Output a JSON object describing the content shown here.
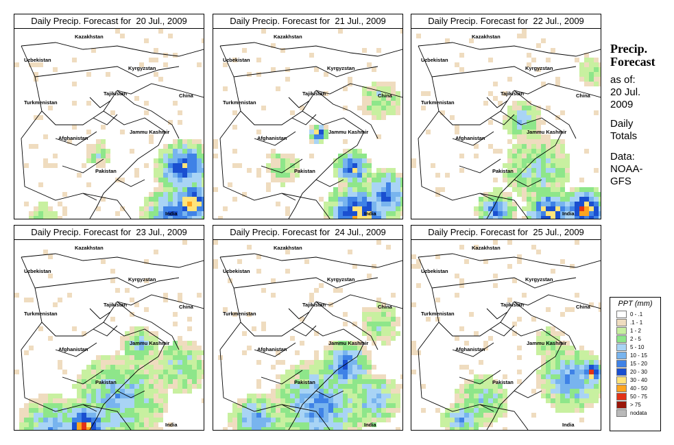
{
  "panels": [
    {
      "title": "Daily Precip. Forecast for  20 Jul., 2009",
      "seed": 11
    },
    {
      "title": "Daily Precip. Forecast for  21 Jul., 2009",
      "seed": 23
    },
    {
      "title": "Daily Precip. Forecast for  22 Jul., 2009",
      "seed": 37
    },
    {
      "title": "Daily Precip. Forecast for  23 Jul., 2009",
      "seed": 41
    },
    {
      "title": "Daily Precip. Forecast for  24 Jul., 2009",
      "seed": 53
    },
    {
      "title": "Daily Precip. Forecast for  25 Jul., 2009",
      "seed": 67
    }
  ],
  "map_labels": {
    "uzbekistan": "Uzbekistan",
    "kazakhstan": "Kazakhstan",
    "kyrgyzstan": "Kyrgyzstan",
    "tajikistan": "Tajikistan",
    "turkmenistan": "Turkmenistan",
    "china": "China",
    "afghanistan": "Afghanistan",
    "jammu_kashmir": "Jammu Kashmir",
    "pakistan": "Pakistan",
    "india": "India"
  },
  "side": {
    "heading_line1": "Precip.",
    "heading_line2": "Forecast",
    "asof_line1": "as of:",
    "asof_line2": "20 Jul.",
    "asof_line3": "2009",
    "daily_line1": "Daily",
    "daily_line2": "Totals",
    "data_line1": "Data:",
    "data_line2": "NOAA-",
    "data_line3": "GFS"
  },
  "legend": {
    "title": "PPT (mm)",
    "items": [
      {
        "label": "0 - .1",
        "color": "#ffffff"
      },
      {
        "label": ".1 - 1",
        "color": "#efdcbf"
      },
      {
        "label": "1 - 2",
        "color": "#c8f0a0"
      },
      {
        "label": "2 - 5",
        "color": "#8ee68a"
      },
      {
        "label": "5 - 10",
        "color": "#a9d4f5"
      },
      {
        "label": "10 - 15",
        "color": "#78b4ee"
      },
      {
        "label": "15 - 20",
        "color": "#3f82e6"
      },
      {
        "label": "20 - 30",
        "color": "#1a4fd0"
      },
      {
        "label": "30 - 40",
        "color": "#ffe47a"
      },
      {
        "label": "40 - 50",
        "color": "#ffa41e"
      },
      {
        "label": "50 - 75",
        "color": "#e23217"
      },
      {
        "label": "> 75",
        "color": "#9a1609"
      },
      {
        "label": "nodata",
        "color": "#b9b9b9"
      }
    ]
  }
}
